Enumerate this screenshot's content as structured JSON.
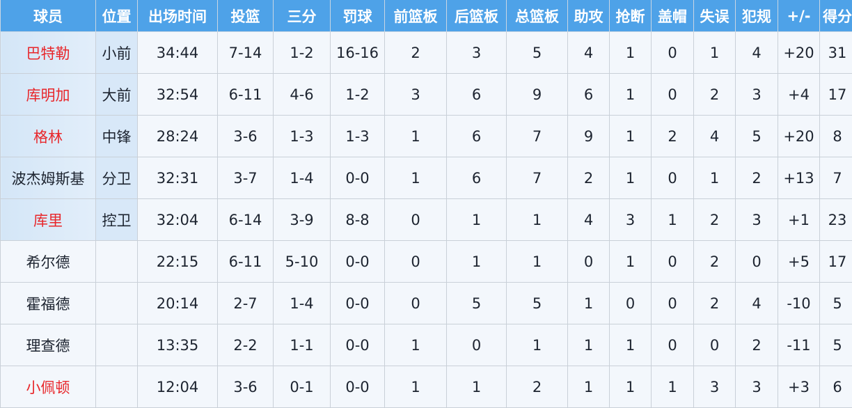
{
  "headers": [
    "球员",
    "位置",
    "出场时间",
    "投篮",
    "三分",
    "罚球",
    "前篮板",
    "后篮板",
    "总篮板",
    "助攻",
    "抢断",
    "盖帽",
    "失误",
    "犯规",
    "+/-",
    "得分"
  ],
  "colors": {
    "header_bg": "#4ea2e8",
    "starter_bg": "#d8e8f8",
    "highlight_name": "#e8262a",
    "cell_bg": "#f3f7fc"
  },
  "rows": [
    {
      "starter": true,
      "red": true,
      "cells": [
        "巴特勒",
        "小前",
        "34:44",
        "7-14",
        "1-2",
        "16-16",
        "2",
        "3",
        "5",
        "4",
        "1",
        "0",
        "1",
        "4",
        "+20",
        "31"
      ]
    },
    {
      "starter": true,
      "red": true,
      "cells": [
        "库明加",
        "大前",
        "32:54",
        "6-11",
        "4-6",
        "1-2",
        "3",
        "6",
        "9",
        "6",
        "1",
        "0",
        "2",
        "3",
        "+4",
        "17"
      ]
    },
    {
      "starter": true,
      "red": true,
      "cells": [
        "格林",
        "中锋",
        "28:24",
        "3-6",
        "1-3",
        "1-3",
        "1",
        "6",
        "7",
        "9",
        "1",
        "2",
        "4",
        "5",
        "+20",
        "8"
      ]
    },
    {
      "starter": true,
      "red": false,
      "cells": [
        "波杰姆斯基",
        "分卫",
        "32:31",
        "3-7",
        "1-4",
        "0-0",
        "1",
        "6",
        "7",
        "2",
        "1",
        "0",
        "1",
        "2",
        "+13",
        "7"
      ]
    },
    {
      "starter": true,
      "red": true,
      "cells": [
        "库里",
        "控卫",
        "32:04",
        "6-14",
        "3-9",
        "8-8",
        "0",
        "1",
        "1",
        "4",
        "3",
        "1",
        "2",
        "3",
        "+1",
        "23"
      ]
    },
    {
      "starter": false,
      "red": false,
      "cells": [
        "希尔德",
        "",
        "22:15",
        "6-11",
        "5-10",
        "0-0",
        "0",
        "1",
        "1",
        "0",
        "1",
        "0",
        "2",
        "0",
        "+5",
        "17"
      ]
    },
    {
      "starter": false,
      "red": false,
      "cells": [
        "霍福德",
        "",
        "20:14",
        "2-7",
        "1-4",
        "0-0",
        "0",
        "5",
        "5",
        "1",
        "0",
        "0",
        "2",
        "4",
        "-10",
        "5"
      ]
    },
    {
      "starter": false,
      "red": false,
      "cells": [
        "理查德",
        "",
        "13:35",
        "2-2",
        "1-1",
        "0-0",
        "1",
        "0",
        "1",
        "1",
        "1",
        "0",
        "0",
        "2",
        "-11",
        "5"
      ]
    },
    {
      "starter": false,
      "red": true,
      "cells": [
        "小佩顿",
        "",
        "12:04",
        "3-6",
        "0-1",
        "0-0",
        "1",
        "1",
        "2",
        "1",
        "1",
        "1",
        "3",
        "3",
        "+3",
        "6"
      ]
    }
  ]
}
